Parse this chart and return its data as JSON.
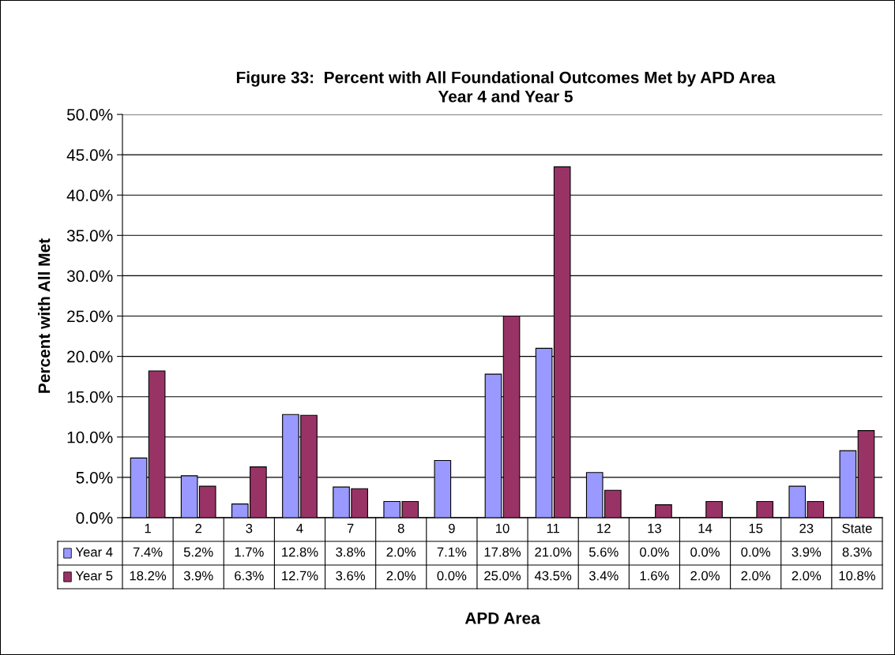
{
  "chart_data": {
    "type": "bar",
    "title": "Figure 33:  Percent with All Foundational Outcomes Met by APD Area\nYear 4 and Year 5",
    "xlabel": "APD Area",
    "ylabel": "Percent with All Met",
    "categories": [
      "1",
      "2",
      "3",
      "4",
      "7",
      "8",
      "9",
      "10",
      "11",
      "12",
      "13",
      "14",
      "15",
      "23",
      "State"
    ],
    "series": [
      {
        "name": "Year 4",
        "color": "#9999ff",
        "values": [
          7.4,
          5.2,
          1.7,
          12.8,
          3.8,
          2.0,
          7.1,
          17.8,
          21.0,
          5.6,
          0.0,
          0.0,
          0.0,
          3.9,
          8.3
        ],
        "value_labels": [
          "7.4%",
          "5.2%",
          "1.7%",
          "12.8%",
          "3.8%",
          "2.0%",
          "7.1%",
          "17.8%",
          "21.0%",
          "5.6%",
          "0.0%",
          "0.0%",
          "0.0%",
          "3.9%",
          "8.3%"
        ]
      },
      {
        "name": "Year 5",
        "color": "#993366",
        "values": [
          18.2,
          3.9,
          6.3,
          12.7,
          3.6,
          2.0,
          0.0,
          25.0,
          43.5,
          3.4,
          1.6,
          2.0,
          2.0,
          2.0,
          10.8
        ],
        "value_labels": [
          "18.2%",
          "3.9%",
          "6.3%",
          "12.7%",
          "3.6%",
          "2.0%",
          "0.0%",
          "25.0%",
          "43.5%",
          "3.4%",
          "1.6%",
          "2.0%",
          "2.0%",
          "2.0%",
          "10.8%"
        ]
      }
    ],
    "ylim": [
      0,
      50
    ],
    "yticks": [
      {
        "value": 0,
        "label": "0.0%"
      },
      {
        "value": 5,
        "label": "5.0%"
      },
      {
        "value": 10,
        "label": "10.0%"
      },
      {
        "value": 15,
        "label": "15.0%"
      },
      {
        "value": 20,
        "label": "20.0%"
      },
      {
        "value": 25,
        "label": "25.0%"
      },
      {
        "value": 30,
        "label": "30.0%"
      },
      {
        "value": 35,
        "label": "35.0%"
      },
      {
        "value": 40,
        "label": "40.0%"
      },
      {
        "value": 45,
        "label": "45.0%"
      },
      {
        "value": 50,
        "label": "50.0%"
      }
    ],
    "grid": "y",
    "legend": "bottom"
  }
}
